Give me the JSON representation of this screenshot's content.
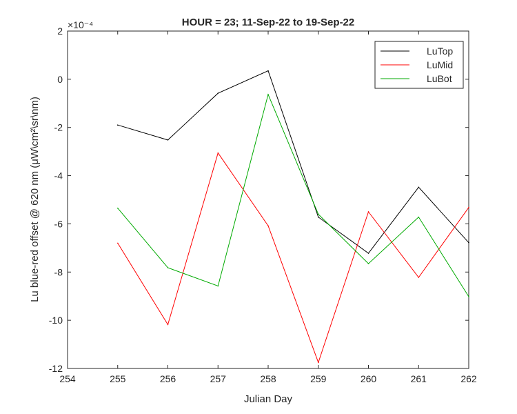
{
  "chart_data": {
    "type": "line",
    "title": "HOUR = 23; 11-Sep-22 to 19-Sep-22",
    "xlabel": "Julian Day",
    "ylabel": "Lu blue-red offset @ 620 nm (μW\\cm²\\sr\\nm)",
    "y_multiplier": "×10⁻⁴",
    "xlim": [
      254,
      262
    ],
    "ylim": [
      -12,
      2
    ],
    "x_ticks": [
      "254",
      "255",
      "256",
      "257",
      "258",
      "259",
      "260",
      "261",
      "262"
    ],
    "y_ticks": [
      "2",
      "0",
      "-2",
      "-4",
      "-6",
      "-8",
      "-10",
      "-12"
    ],
    "grid": false,
    "legend_position": "top-right",
    "x": [
      255,
      256,
      257,
      258,
      259,
      260,
      261,
      262
    ],
    "series": [
      {
        "name": "LuTop",
        "color": "#000000",
        "values": [
          -1.9,
          -2.52,
          -0.58,
          0.35,
          -5.72,
          -7.22,
          -4.48,
          -6.78
        ]
      },
      {
        "name": "LuMid",
        "color": "#ff0000",
        "values": [
          -6.8,
          -10.18,
          -3.06,
          -6.08,
          -11.75,
          -5.5,
          -8.22,
          -5.32
        ]
      },
      {
        "name": "LuBot",
        "color": "#00aa00",
        "values": [
          -5.35,
          -7.82,
          -8.58,
          -0.63,
          -5.6,
          -7.65,
          -5.72,
          -9.02
        ]
      }
    ]
  }
}
